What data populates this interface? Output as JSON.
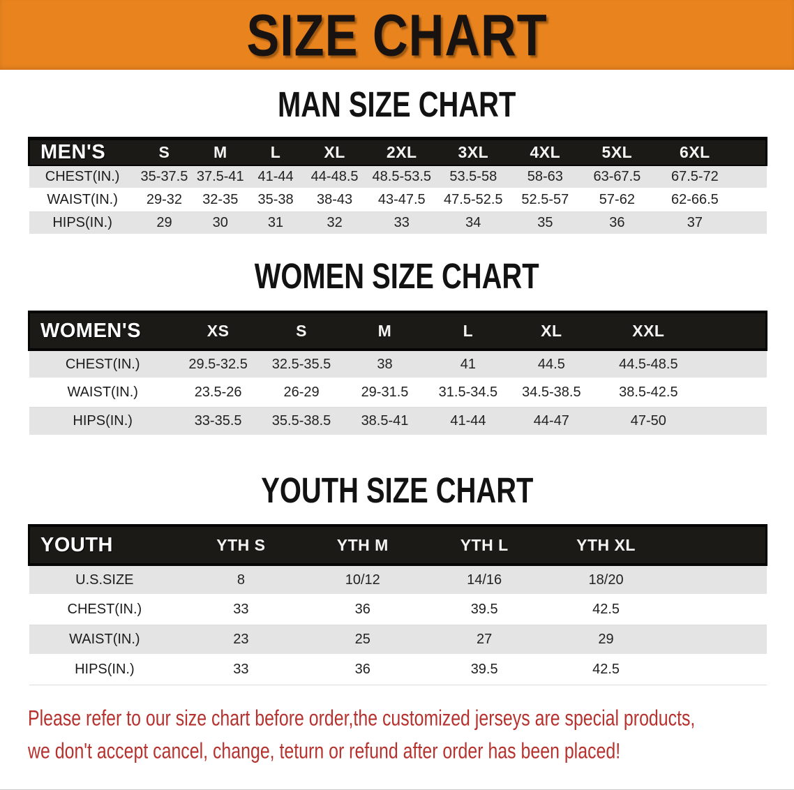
{
  "banner": {
    "title": "SIZE CHART"
  },
  "colors": {
    "banner_bg": "#E8831E",
    "table_header_bg": "#1C1A17",
    "row_stripe": "#E4E4E5",
    "disclaimer_red": "#B5322E"
  },
  "sections": [
    {
      "heading": "MAN SIZE CHART",
      "header_label": "MEN'S",
      "columns": [
        "S",
        "M",
        "L",
        "XL",
        "2XL",
        "3XL",
        "4XL",
        "5XL",
        "6XL"
      ],
      "rows": [
        {
          "label": "CHEST(IN.)",
          "values": [
            "35-37.5",
            "37.5-41",
            "41-44",
            "44-48.5",
            "48.5-53.5",
            "53.5-58",
            "58-63",
            "63-67.5",
            "67.5-72"
          ]
        },
        {
          "label": "WAIST(IN.)",
          "values": [
            "29-32",
            "32-35",
            "35-38",
            "38-43",
            "43-47.5",
            "47.5-52.5",
            "52.5-57",
            "57-62",
            "62-66.5"
          ]
        },
        {
          "label": "HIPS(IN.)",
          "values": [
            "29",
            "30",
            "31",
            "32",
            "33",
            "34",
            "35",
            "36",
            "37"
          ]
        }
      ]
    },
    {
      "heading": "WOMEN SIZE CHART",
      "header_label": "WOMEN'S",
      "columns": [
        "XS",
        "S",
        "M",
        "L",
        "XL",
        "XXL"
      ],
      "rows": [
        {
          "label": "CHEST(IN.)",
          "values": [
            "29.5-32.5",
            "32.5-35.5",
            "38",
            "41",
            "44.5",
            "44.5-48.5"
          ]
        },
        {
          "label": "WAIST(IN.)",
          "values": [
            "23.5-26",
            "26-29",
            "29-31.5",
            "31.5-34.5",
            "34.5-38.5",
            "38.5-42.5"
          ]
        },
        {
          "label": "HIPS(IN.)",
          "values": [
            "33-35.5",
            "35.5-38.5",
            "38.5-41",
            "41-44",
            "44-47",
            "47-50"
          ]
        }
      ]
    },
    {
      "heading": "YOUTH SIZE CHART",
      "header_label": "YOUTH",
      "columns": [
        "YTH S",
        "YTH M",
        "YTH L",
        "YTH XL"
      ],
      "rows": [
        {
          "label": "U.S.SIZE",
          "values": [
            "8",
            "10/12",
            "14/16",
            "18/20"
          ]
        },
        {
          "label": "CHEST(IN.)",
          "values": [
            "33",
            "36",
            "39.5",
            "42.5"
          ]
        },
        {
          "label": "WAIST(IN.)",
          "values": [
            "23",
            "25",
            "27",
            "29"
          ]
        },
        {
          "label": "HIPS(IN.)",
          "values": [
            "33",
            "36",
            "39.5",
            "42.5"
          ]
        }
      ]
    }
  ],
  "disclaimer": {
    "line1": "Please refer to our size chart before order,the customized jerseys are special products,",
    "line2": "we don't accept cancel, change, teturn or refund after order has been placed!"
  }
}
